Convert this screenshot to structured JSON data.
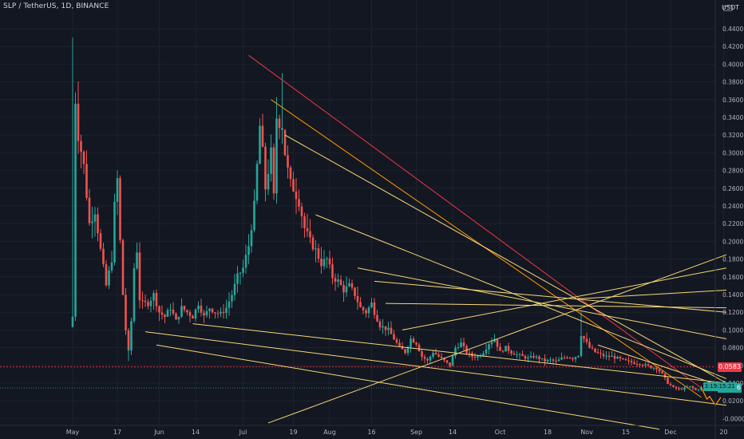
{
  "header": {
    "symbol_line": "SLP / TetherUS, 1D, BINANCE",
    "unit_label": "USDT",
    "currency_icon": "currency-toggle-icon"
  },
  "chart_data": {
    "type": "candlestick",
    "title": "SLP / TetherUS, 1D, BINANCE",
    "ylabel": "USDT",
    "ylim": [
      -0.0108,
      0.4556
    ],
    "y_ticks": [
      "0.4400",
      "0.4200",
      "0.4000",
      "0.3800",
      "0.3600",
      "0.3400",
      "0.3200",
      "0.3000",
      "0.2800",
      "0.2600",
      "0.2400",
      "0.2200",
      "0.2000",
      "0.1800",
      "0.1600",
      "0.1400",
      "0.1200",
      "0.1000",
      "0.0800",
      "0.0600",
      "0.0400",
      "0.0200",
      "-0.0000"
    ],
    "x_ticks": [
      {
        "label": "May",
        "day": 0
      },
      {
        "label": "17",
        "day": 16
      },
      {
        "label": "Jun",
        "day": 31
      },
      {
        "label": "14",
        "day": 44
      },
      {
        "label": "Jul",
        "day": 61
      },
      {
        "label": "19",
        "day": 79
      },
      {
        "label": "Aug",
        "day": 92
      },
      {
        "label": "16",
        "day": 107
      },
      {
        "label": "Sep",
        "day": 123
      },
      {
        "label": "14",
        "day": 136
      },
      {
        "label": "Oct",
        "day": 153
      },
      {
        "label": "18",
        "day": 170
      },
      {
        "label": "Nov",
        "day": 184
      },
      {
        "label": "15",
        "day": 198
      },
      {
        "label": "Dec",
        "day": 214
      },
      {
        "label": "20",
        "day": 233
      }
    ],
    "grid": true,
    "colors": {
      "up": "#26a69a",
      "down": "#ef5350",
      "background": "#131722",
      "grid": "#1e222d",
      "trend": "#f7d774",
      "trend_red": "#f23645"
    },
    "last_price": {
      "value": "0.0346",
      "countdown": "3:19:15:21",
      "color": "#26a69a"
    },
    "prev_close": {
      "value": "0.0583",
      "color": "#f23645"
    },
    "anchors": [
      [
        0,
        0.115
      ],
      [
        1,
        0.36
      ],
      [
        2,
        0.32
      ],
      [
        4,
        0.285
      ],
      [
        6,
        0.22
      ],
      [
        8,
        0.235
      ],
      [
        10,
        0.19
      ],
      [
        12,
        0.15
      ],
      [
        14,
        0.18
      ],
      [
        15,
        0.24
      ],
      [
        16,
        0.27
      ],
      [
        17,
        0.2
      ],
      [
        18,
        0.14
      ],
      [
        19,
        0.1
      ],
      [
        20,
        0.075
      ],
      [
        21,
        0.11
      ],
      [
        22,
        0.17
      ],
      [
        23,
        0.19
      ],
      [
        24,
        0.135
      ],
      [
        25,
        0.13
      ],
      [
        27,
        0.13
      ],
      [
        29,
        0.14
      ],
      [
        31,
        0.12
      ],
      [
        33,
        0.115
      ],
      [
        35,
        0.125
      ],
      [
        37,
        0.11
      ],
      [
        39,
        0.125
      ],
      [
        41,
        0.12
      ],
      [
        43,
        0.115
      ],
      [
        45,
        0.13
      ],
      [
        47,
        0.115
      ],
      [
        49,
        0.125
      ],
      [
        51,
        0.12
      ],
      [
        53,
        0.118
      ],
      [
        55,
        0.125
      ],
      [
        57,
        0.14
      ],
      [
        59,
        0.16
      ],
      [
        61,
        0.17
      ],
      [
        63,
        0.195
      ],
      [
        65,
        0.24
      ],
      [
        67,
        0.33
      ],
      [
        68,
        0.3
      ],
      [
        69,
        0.26
      ],
      [
        70,
        0.28
      ],
      [
        71,
        0.3
      ],
      [
        72,
        0.25
      ],
      [
        73,
        0.34
      ],
      [
        75,
        0.33
      ],
      [
        76,
        0.3
      ],
      [
        77,
        0.28
      ],
      [
        78,
        0.265
      ],
      [
        79,
        0.26
      ],
      [
        81,
        0.245
      ],
      [
        83,
        0.215
      ],
      [
        85,
        0.2
      ],
      [
        87,
        0.19
      ],
      [
        89,
        0.175
      ],
      [
        91,
        0.18
      ],
      [
        93,
        0.16
      ],
      [
        95,
        0.155
      ],
      [
        97,
        0.145
      ],
      [
        99,
        0.15
      ],
      [
        101,
        0.14
      ],
      [
        103,
        0.125
      ],
      [
        105,
        0.12
      ],
      [
        107,
        0.13
      ],
      [
        108,
        0.12
      ],
      [
        110,
        0.105
      ],
      [
        113,
        0.1
      ],
      [
        115,
        0.09
      ],
      [
        117,
        0.08
      ],
      [
        119,
        0.075
      ],
      [
        121,
        0.09
      ],
      [
        123,
        0.085
      ],
      [
        125,
        0.07
      ],
      [
        127,
        0.065
      ],
      [
        129,
        0.075
      ],
      [
        131,
        0.07
      ],
      [
        133,
        0.065
      ],
      [
        135,
        0.06
      ],
      [
        137,
        0.08
      ],
      [
        139,
        0.085
      ],
      [
        141,
        0.075
      ],
      [
        143,
        0.07
      ],
      [
        145,
        0.07
      ],
      [
        147,
        0.075
      ],
      [
        149,
        0.085
      ],
      [
        151,
        0.09
      ],
      [
        153,
        0.075
      ],
      [
        155,
        0.08
      ],
      [
        157,
        0.075
      ],
      [
        159,
        0.072
      ],
      [
        161,
        0.07
      ],
      [
        163,
        0.068
      ],
      [
        165,
        0.07
      ],
      [
        167,
        0.068
      ],
      [
        169,
        0.065
      ],
      [
        171,
        0.066
      ],
      [
        173,
        0.064
      ],
      [
        175,
        0.068
      ],
      [
        177,
        0.07
      ],
      [
        179,
        0.068
      ],
      [
        181,
        0.072
      ],
      [
        182,
        0.095
      ],
      [
        183,
        0.09
      ],
      [
        185,
        0.08
      ],
      [
        187,
        0.075
      ],
      [
        189,
        0.072
      ],
      [
        191,
        0.07
      ],
      [
        193,
        0.07
      ],
      [
        195,
        0.068
      ],
      [
        197,
        0.066
      ],
      [
        199,
        0.064
      ],
      [
        201,
        0.063
      ],
      [
        203,
        0.062
      ],
      [
        205,
        0.06
      ],
      [
        207,
        0.058
      ],
      [
        209,
        0.057
      ],
      [
        211,
        0.05
      ],
      [
        213,
        0.04
      ],
      [
        215,
        0.035
      ],
      [
        217,
        0.033
      ],
      [
        219,
        0.034
      ],
      [
        221,
        0.036
      ],
      [
        223,
        0.032
      ],
      [
        225,
        0.0346
      ]
    ],
    "trendlines": [
      {
        "name": "red-trendline",
        "color": "#f23645",
        "x1": 63,
        "y1": 0.41,
        "x2": 225,
        "y2": 0.0346
      },
      {
        "name": "orange-trendline",
        "color": "#ff9800",
        "x1": 71,
        "y1": 0.36,
        "x2": 225,
        "y2": 0.024
      },
      {
        "name": "yellow-trendline-1",
        "color": "#f7d774",
        "x1": 76,
        "y1": 0.32,
        "x2": 234,
        "y2": 0.04
      },
      {
        "name": "yellow-trendline-2",
        "color": "#f7d774",
        "x1": 87,
        "y1": 0.23,
        "x2": 234,
        "y2": 0.045
      },
      {
        "name": "yellow-trendline-3",
        "color": "#f7d774",
        "x1": 102,
        "y1": 0.17,
        "x2": 234,
        "y2": 0.09
      },
      {
        "name": "yellow-trendline-4",
        "color": "#f7d774",
        "x1": 108,
        "y1": 0.155,
        "x2": 234,
        "y2": 0.12
      },
      {
        "name": "yellow-trendline-5",
        "color": "#f7d774",
        "x1": 112,
        "y1": 0.13,
        "x2": 234,
        "y2": 0.125
      },
      {
        "name": "yellow-trendline-6",
        "color": "#f7d774",
        "x1": 70,
        "y1": -0.005,
        "x2": 234,
        "y2": 0.185
      },
      {
        "name": "yellow-trendline-7",
        "color": "#f7d774",
        "x1": 118,
        "y1": 0.1,
        "x2": 234,
        "y2": 0.17
      },
      {
        "name": "yellow-trendline-8",
        "color": "#f7d774",
        "x1": 180,
        "y1": 0.135,
        "x2": 234,
        "y2": 0.145
      },
      {
        "name": "yellow-trendline-9",
        "color": "#f7d774",
        "x1": 26,
        "y1": 0.098,
        "x2": 234,
        "y2": 0.015
      },
      {
        "name": "yellow-trendline-10",
        "color": "#f7d774",
        "x1": 43,
        "y1": 0.107,
        "x2": 234,
        "y2": 0.04
      },
      {
        "name": "yellow-trendline-11",
        "color": "#f7d774",
        "x1": 30,
        "y1": 0.083,
        "x2": 210,
        "y2": -0.012
      },
      {
        "name": "yellow-trendline-12",
        "color": "#f7d774",
        "x1": 188,
        "y1": 0.083,
        "x2": 234,
        "y2": 0.035
      }
    ],
    "projection": [
      [
        225,
        0.035
      ],
      [
        227,
        0.022
      ],
      [
        228,
        0.025
      ],
      [
        230,
        0.015
      ],
      [
        232,
        0.024
      ]
    ]
  }
}
